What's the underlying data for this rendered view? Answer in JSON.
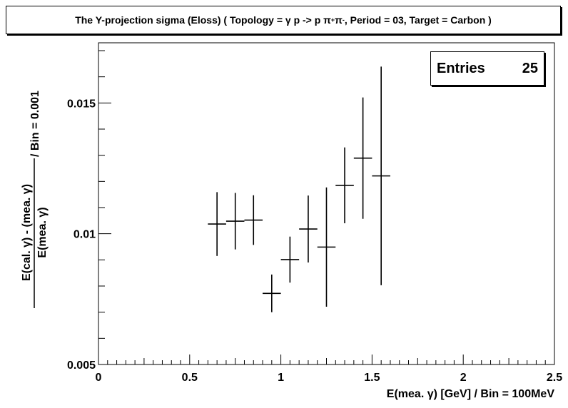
{
  "title": {
    "prefix": "The Y-projection sigma (Eloss) ( Topology = γ p -> p π",
    "sup1": "+",
    "mid": " π",
    "sup2": "-",
    "suffix": " , Period = 03, Target = Carbon )"
  },
  "stats": {
    "label": "Entries",
    "value": "25"
  },
  "chart_data": {
    "type": "scatter",
    "xlabel": "E(mea. γ) [GeV] / Bin = 100MeV",
    "ylabel_numerator": "E(cal. γ) - (mea. γ)",
    "ylabel_denominator": "E(mea. γ)",
    "ylabel_suffix": " / Bin = 0.001",
    "xlim": [
      0,
      2.5
    ],
    "ylim": [
      0.005,
      0.0173
    ],
    "x_ticks": [
      0,
      0.5,
      1,
      1.5,
      2,
      2.5
    ],
    "x_tick_labels": [
      "0",
      "0.5",
      "1",
      "1.5",
      "2",
      "2.5"
    ],
    "y_ticks": [
      0.005,
      0.01,
      0.015
    ],
    "y_tick_labels": [
      "0.005",
      "0.01",
      "0.015"
    ],
    "grid": false,
    "bin_width": 0.1,
    "points": [
      {
        "x": 0.65,
        "y": 0.01037,
        "y_err": 0.00122
      },
      {
        "x": 0.75,
        "y": 0.01048,
        "y_err": 0.00108
      },
      {
        "x": 0.85,
        "y": 0.01052,
        "y_err": 0.00095
      },
      {
        "x": 0.95,
        "y": 0.00772,
        "y_err": 0.00072
      },
      {
        "x": 1.05,
        "y": 0.00901,
        "y_err": 0.00088
      },
      {
        "x": 1.15,
        "y": 0.01018,
        "y_err": 0.00128
      },
      {
        "x": 1.25,
        "y": 0.00949,
        "y_err": 0.00228
      },
      {
        "x": 1.35,
        "y": 0.01185,
        "y_err": 0.00145
      },
      {
        "x": 1.45,
        "y": 0.01289,
        "y_err": 0.00232
      },
      {
        "x": 1.55,
        "y": 0.01221,
        "y_err": 0.00418
      }
    ]
  }
}
